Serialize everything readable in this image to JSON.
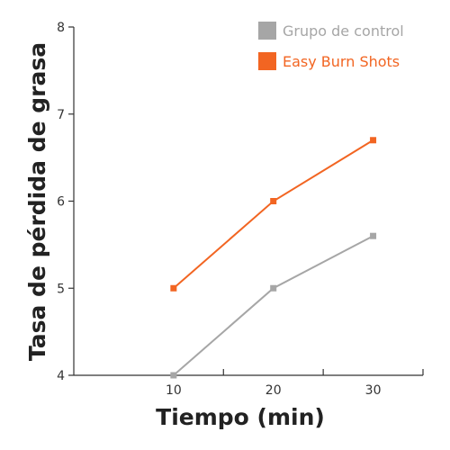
{
  "chart_data": {
    "type": "line",
    "title": "",
    "xlabel": "Tiempo (min)",
    "ylabel": "Tasa de pérdida de grasa",
    "x": [
      10,
      20,
      30
    ],
    "x_ticks": [
      "10",
      "20",
      "30"
    ],
    "y_ticks": [
      "4",
      "5",
      "6",
      "7",
      "8"
    ],
    "ylim": [
      4,
      8
    ],
    "xlim": [
      0,
      35
    ],
    "grid": false,
    "legend_position": "top-right",
    "series": [
      {
        "name": "Grupo de control",
        "color": "#a6a6a6",
        "values": [
          4.0,
          5.0,
          5.6
        ]
      },
      {
        "name": "Easy Burn Shots",
        "color": "#f26522",
        "values": [
          5.0,
          6.0,
          6.7
        ]
      }
    ]
  }
}
